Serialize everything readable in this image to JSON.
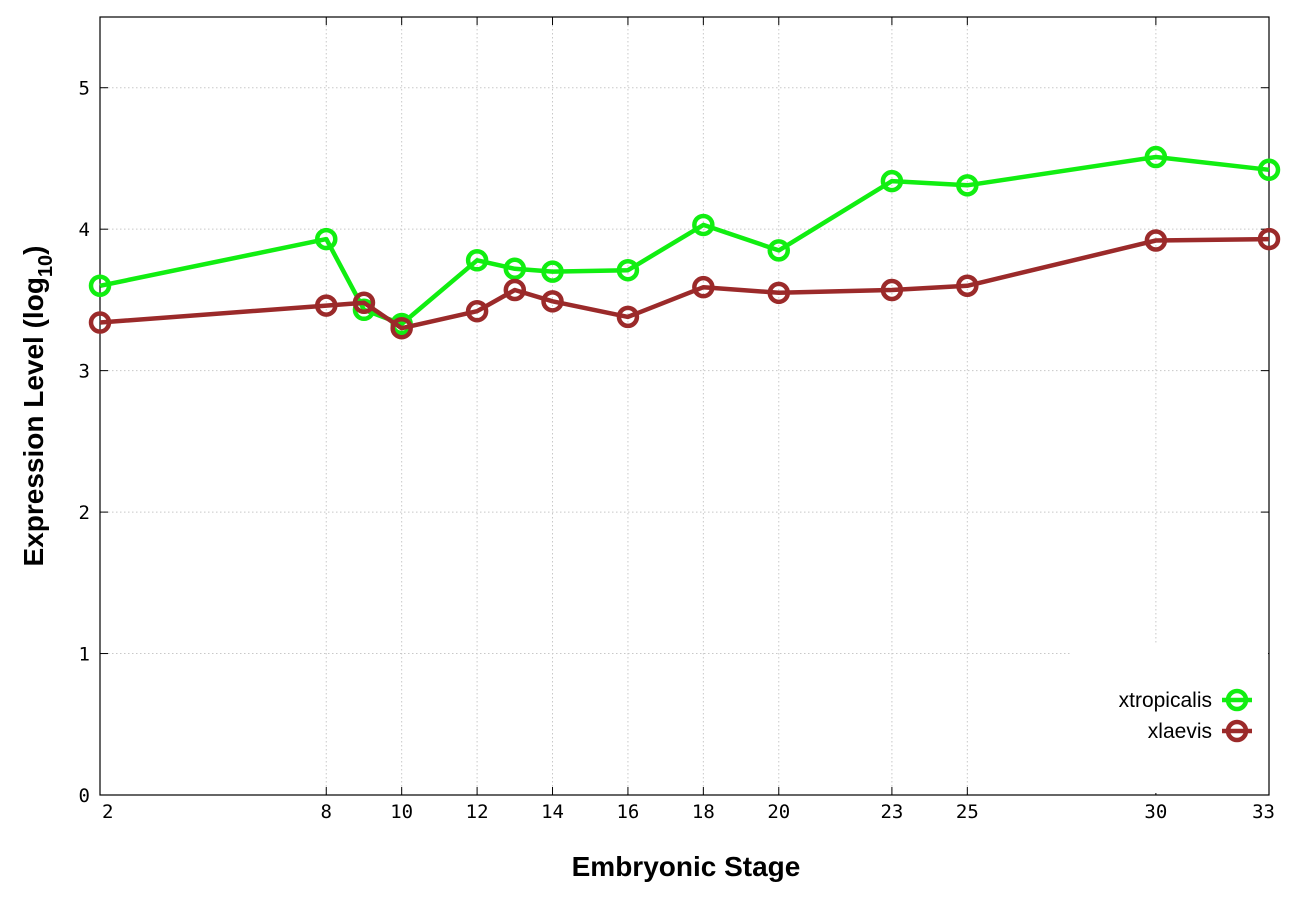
{
  "chart_data": {
    "type": "line",
    "title": "",
    "xlabel": "Embryonic Stage",
    "ylabel": "Expression Level (log",
    "ylabel_subscript": "10",
    "ylabel_suffix": ")",
    "xlim": [
      2,
      33
    ],
    "ylim": [
      0,
      5.5
    ],
    "x": [
      2,
      8,
      9,
      10,
      12,
      13,
      14,
      16,
      18,
      20,
      23,
      25,
      30,
      33
    ],
    "xticks": [
      2,
      8,
      10,
      12,
      14,
      16,
      18,
      20,
      23,
      25,
      30,
      33
    ],
    "yticks": [
      0,
      1,
      2,
      3,
      4,
      5
    ],
    "grid": true,
    "legend_position": "bottom-right",
    "series": [
      {
        "name": "xtropicalis",
        "color": "#11ee11",
        "marker": "circle",
        "values": [
          3.6,
          3.93,
          3.43,
          3.33,
          3.78,
          3.72,
          3.7,
          3.71,
          4.03,
          3.85,
          4.34,
          4.31,
          4.51,
          4.42
        ]
      },
      {
        "name": "xlaevis",
        "color": "#9b2a2a",
        "marker": "circle",
        "values": [
          3.34,
          3.46,
          3.48,
          3.3,
          3.42,
          3.57,
          3.49,
          3.38,
          3.59,
          3.55,
          3.57,
          3.6,
          3.92,
          3.93
        ]
      }
    ]
  }
}
